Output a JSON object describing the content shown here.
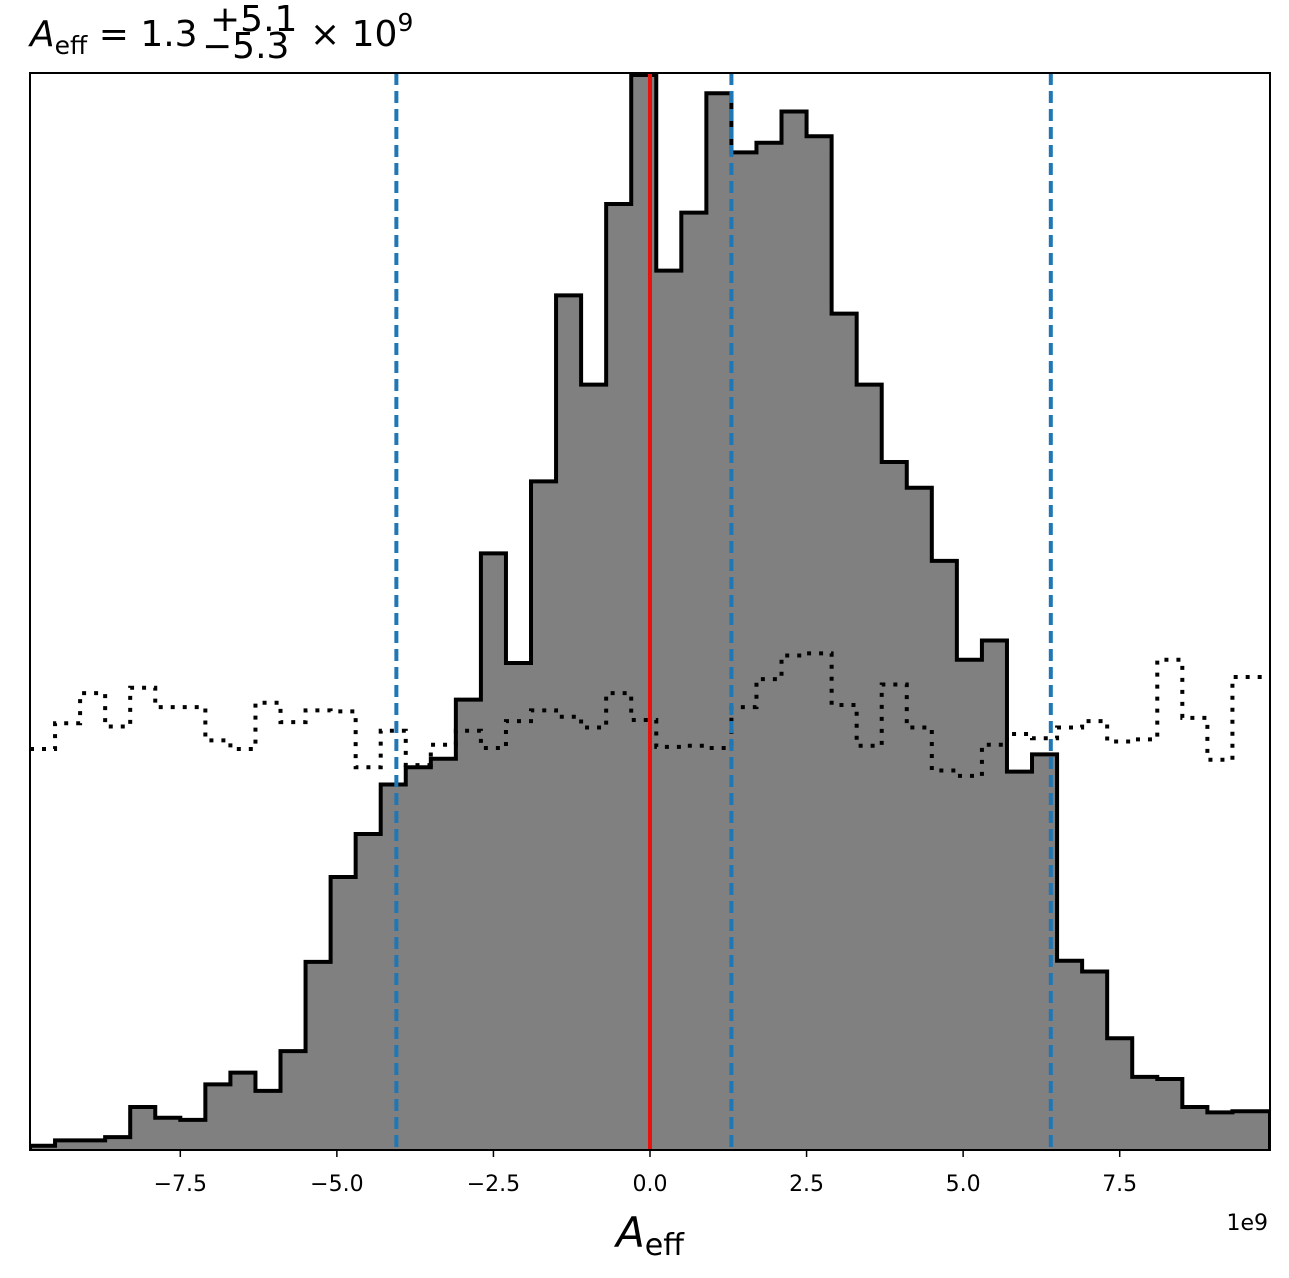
{
  "chart_data": {
    "type": "histogram",
    "title": {
      "symbol": "A",
      "symbol_sub": "eff",
      "value": "1.3",
      "plus": "+5.1",
      "minus": "−5.3",
      "times": "×",
      "base": "10",
      "exponent": "9"
    },
    "xlabel": {
      "symbol": "A",
      "sub": "eff"
    },
    "x_offset_label": "1e9",
    "xlim": [
      -9.9,
      9.9
    ],
    "ylim": [
      0,
      1
    ],
    "x_ticks": [
      -7.5,
      -5.0,
      -2.5,
      0.0,
      2.5,
      5.0,
      7.5
    ],
    "x_tick_labels": [
      "−7.5",
      "−5.0",
      "−2.5",
      "0.0",
      "2.5",
      "5.0",
      "7.5"
    ],
    "bin_edges": [
      -9.9,
      -9.5,
      -9.1,
      -8.7,
      -8.3,
      -7.9,
      -7.5,
      -7.1,
      -6.7,
      -6.3,
      -5.9,
      -5.5,
      -5.1,
      -4.7,
      -4.3,
      -3.9,
      -3.5,
      -3.1,
      -2.7,
      -2.3,
      -1.9,
      -1.5,
      -1.1,
      -0.7,
      -0.3,
      0.1,
      0.5,
      0.9,
      1.3,
      1.7,
      2.1,
      2.5,
      2.9,
      3.3,
      3.7,
      4.1,
      4.5,
      4.9,
      5.3,
      5.7,
      6.1,
      6.5,
      6.9,
      7.3,
      7.7,
      8.1,
      8.5,
      8.9,
      9.3,
      9.9
    ],
    "series": [
      {
        "style": "filled",
        "fill": "#808080",
        "edge": "#000000",
        "values": [
          0.004,
          0.009,
          0.009,
          0.012,
          0.04,
          0.03,
          0.028,
          0.061,
          0.072,
          0.055,
          0.092,
          0.175,
          0.254,
          0.294,
          0.34,
          0.356,
          0.364,
          0.419,
          0.555,
          0.453,
          0.622,
          0.795,
          0.712,
          0.88,
          1.0,
          0.818,
          0.872,
          0.983,
          0.928,
          0.937,
          0.966,
          0.943,
          0.778,
          0.712,
          0.64,
          0.616,
          0.548,
          0.456,
          0.474,
          0.352,
          0.368,
          0.176,
          0.166,
          0.104,
          0.068,
          0.066,
          0.04,
          0.035,
          0.036
        ]
      },
      {
        "style": "dotted-step",
        "edge": "#000000",
        "values": [
          0.373,
          0.397,
          0.425,
          0.394,
          0.43,
          0.412,
          0.412,
          0.381,
          0.373,
          0.416,
          0.398,
          0.409,
          0.408,
          0.356,
          0.39,
          0.358,
          0.377,
          0.39,
          0.374,
          0.399,
          0.409,
          0.403,
          0.393,
          0.425,
          0.4,
          0.375,
          0.376,
          0.374,
          0.412,
          0.438,
          0.46,
          0.462,
          0.414,
          0.376,
          0.433,
          0.393,
          0.353,
          0.348,
          0.377,
          0.387,
          0.383,
          0.393,
          0.399,
          0.38,
          0.382,
          0.456,
          0.402,
          0.363,
          0.44
        ]
      }
    ],
    "vlines": [
      {
        "x": -4.05,
        "color": "#1f77b4",
        "dash": "dashed"
      },
      {
        "x": 1.3,
        "color": "#1f77b4",
        "dash": "dashed"
      },
      {
        "x": 6.4,
        "color": "#1f77b4",
        "dash": "dashed"
      },
      {
        "x": 0.0,
        "color": "#e8120c",
        "dash": "solid"
      }
    ]
  }
}
